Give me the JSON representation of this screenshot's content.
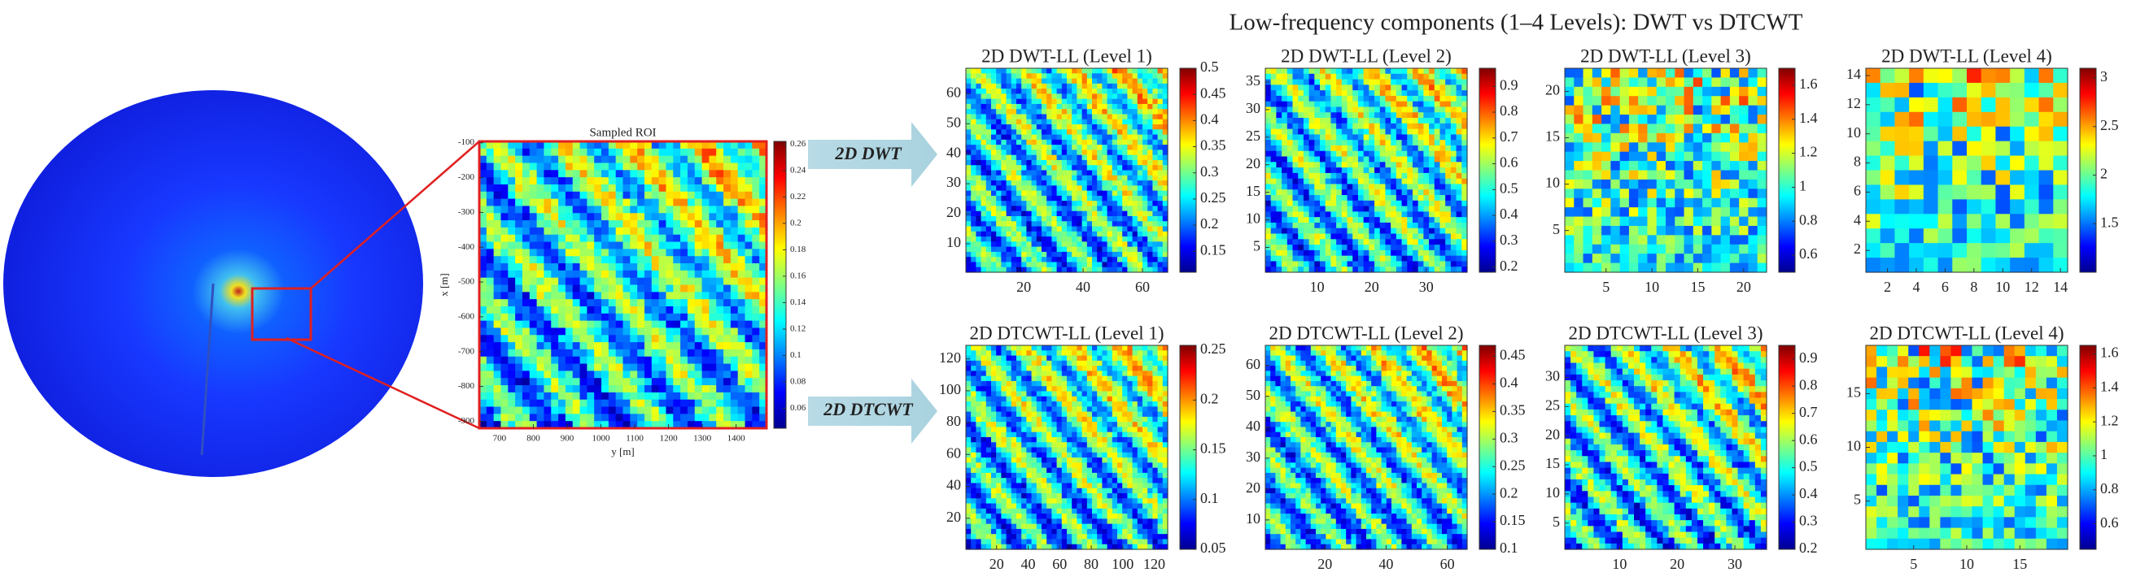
{
  "title": "Low-frequency components (1–4 Levels): DWT vs DTCWT",
  "annotations": [
    "2D DWT",
    "2D DTCWT"
  ],
  "chart_data": [
    {
      "type": "heatmap",
      "title": "Sampled ROI",
      "xlabel": "y [m]",
      "ylabel": "x [m]",
      "xlim": [
        640,
        1490
      ],
      "ylim": [
        -920,
        -96
      ],
      "xticks": [
        700,
        800,
        900,
        1000,
        1100,
        1200,
        1300,
        1400
      ],
      "yticks": [
        -900,
        -800,
        -700,
        -600,
        -500,
        -400,
        -300,
        -200,
        -100
      ],
      "clim": [
        0.045,
        0.262
      ],
      "cticks": [
        0.06,
        0.08,
        0.1,
        0.12,
        0.14,
        0.16,
        0.18,
        0.2,
        0.22,
        0.24,
        0.26
      ]
    },
    {
      "type": "heatmap",
      "title": "2D DWT-LL (Level 1)",
      "xlim": [
        0.5,
        68.5
      ],
      "ylim": [
        0.5,
        68.5
      ],
      "xticks": [
        20,
        40,
        60
      ],
      "yticks": [
        10,
        20,
        30,
        40,
        50,
        60
      ],
      "clim": [
        0.11,
        0.5
      ],
      "cticks": [
        0.15,
        0.2,
        0.25,
        0.3,
        0.35,
        0.4,
        0.45,
        0.5
      ]
    },
    {
      "type": "heatmap",
      "title": "2D DWT-LL (Level 2)",
      "xlim": [
        0.5,
        37.5
      ],
      "ylim": [
        0.5,
        37.5
      ],
      "xticks": [
        10,
        20,
        30
      ],
      "yticks": [
        5,
        10,
        15,
        20,
        25,
        30,
        35
      ],
      "clim": [
        0.18,
        0.97
      ],
      "cticks": [
        0.2,
        0.3,
        0.4,
        0.5,
        0.6,
        0.7,
        0.8,
        0.9
      ]
    },
    {
      "type": "heatmap",
      "title": "2D DWT-LL (Level 3)",
      "xlim": [
        0.5,
        22.5
      ],
      "ylim": [
        0.5,
        22.5
      ],
      "xticks": [
        5,
        10,
        15,
        20
      ],
      "yticks": [
        5,
        10,
        15,
        20
      ],
      "clim": [
        0.5,
        1.7
      ],
      "cticks": [
        0.6,
        0.8,
        1,
        1.2,
        1.4,
        1.6
      ]
    },
    {
      "type": "heatmap",
      "title": "2D DWT-LL (Level 4)",
      "xlim": [
        0.5,
        14.5
      ],
      "ylim": [
        0.5,
        14.5
      ],
      "xticks": [
        2,
        4,
        6,
        8,
        10,
        12,
        14
      ],
      "yticks": [
        2,
        4,
        6,
        8,
        10,
        12,
        14
      ],
      "clim": [
        1,
        3.1
      ],
      "cticks": [
        1.5,
        2,
        2.5,
        3
      ]
    },
    {
      "type": "heatmap",
      "title": "2D DTCWT-LL (Level 1)",
      "xlim": [
        0.5,
        128.5
      ],
      "ylim": [
        0.5,
        128.5
      ],
      "xticks": [
        20,
        40,
        60,
        80,
        100,
        120
      ],
      "yticks": [
        20,
        40,
        60,
        80,
        100,
        120
      ],
      "clim": [
        0.05,
        0.255
      ],
      "cticks": [
        0.05,
        0.1,
        0.15,
        0.2,
        0.25
      ]
    },
    {
      "type": "heatmap",
      "title": "2D DTCWT-LL (Level 2)",
      "xlim": [
        0.5,
        66.5
      ],
      "ylim": [
        0.5,
        66.5
      ],
      "xticks": [
        20,
        40,
        60
      ],
      "yticks": [
        10,
        20,
        30,
        40,
        50,
        60
      ],
      "clim": [
        0.1,
        0.47
      ],
      "cticks": [
        0.1,
        0.15,
        0.2,
        0.25,
        0.3,
        0.35,
        0.4,
        0.45
      ]
    },
    {
      "type": "heatmap",
      "title": "2D DTCWT-LL (Level 3)",
      "xlim": [
        0.5,
        35.5
      ],
      "ylim": [
        0.5,
        35.5
      ],
      "xticks": [
        10,
        20,
        30
      ],
      "yticks": [
        5,
        10,
        15,
        20,
        25,
        30
      ],
      "clim": [
        0.2,
        0.95
      ],
      "cticks": [
        0.2,
        0.3,
        0.4,
        0.5,
        0.6,
        0.7,
        0.8,
        0.9
      ]
    },
    {
      "type": "heatmap",
      "title": "2D DTCWT-LL (Level 4)",
      "xlim": [
        0.5,
        19.5
      ],
      "ylim": [
        0.5,
        19.5
      ],
      "xticks": [
        5,
        10,
        15
      ],
      "yticks": [
        5,
        10,
        15
      ],
      "clim": [
        0.45,
        1.65
      ],
      "cticks": [
        0.6,
        0.8,
        1,
        1.2,
        1.4,
        1.6
      ]
    }
  ]
}
